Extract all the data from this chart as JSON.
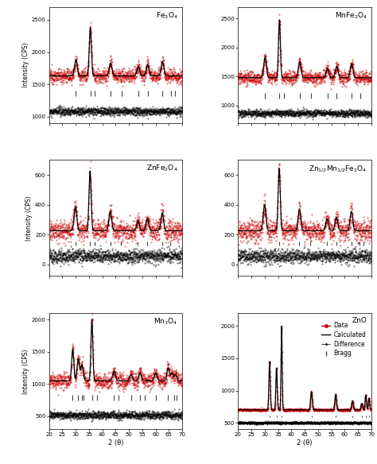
{
  "panels": [
    {
      "name": "Fe$_3$O$_4$",
      "ylim": [
        900,
        2700
      ],
      "yticks": [
        1000,
        1500,
        2000,
        2500
      ],
      "baseline_data": 1630,
      "peak_positions": [
        30.1,
        35.5,
        43.1,
        53.5,
        57.0,
        62.6
      ],
      "peak_heights": [
        250,
        750,
        200,
        150,
        180,
        220
      ],
      "peak_widths": [
        0.5,
        0.4,
        0.5,
        0.5,
        0.5,
        0.5
      ],
      "noise_std": 55,
      "diff_baseline": 1080,
      "diff_noise": 30,
      "bragg_positions": [
        30.1,
        35.5,
        37.1,
        43.1,
        47.2,
        53.5,
        57.0,
        62.6,
        65.8,
        67.2
      ]
    },
    {
      "name": "MnFe$_2$O$_4$",
      "ylim": [
        700,
        2700
      ],
      "yticks": [
        1000,
        1500,
        2000,
        2500
      ],
      "baseline_data": 1480,
      "peak_positions": [
        30.1,
        35.5,
        43.1,
        53.5,
        57.0,
        62.6
      ],
      "peak_heights": [
        350,
        1000,
        280,
        160,
        200,
        240
      ],
      "peak_widths": [
        0.5,
        0.35,
        0.5,
        0.5,
        0.5,
        0.5
      ],
      "noise_std": 55,
      "diff_baseline": 870,
      "diff_noise": 30,
      "bragg_positions": [
        30.1,
        35.5,
        37.1,
        43.1,
        47.2,
        53.5,
        57.0,
        62.6,
        65.8
      ]
    },
    {
      "name": "ZnFe$_2$O$_4$",
      "ylim": [
        -80,
        700
      ],
      "yticks": [
        0,
        200,
        400,
        600
      ],
      "baseline_data": 225,
      "peak_positions": [
        29.9,
        35.4,
        43.0,
        53.4,
        56.9,
        62.5
      ],
      "peak_heights": [
        160,
        400,
        130,
        70,
        80,
        120
      ],
      "peak_widths": [
        0.5,
        0.4,
        0.5,
        0.5,
        0.5,
        0.5
      ],
      "noise_std": 35,
      "diff_baseline": 55,
      "diff_noise": 22,
      "bragg_positions": [
        29.9,
        35.4,
        37.0,
        43.0,
        47.0,
        53.4,
        56.9,
        62.5,
        65.5
      ]
    },
    {
      "name": "Zn$_{1/2}$Mn$_{1/2}$Fe$_2$O$_4$",
      "ylim": [
        -80,
        700
      ],
      "yticks": [
        0,
        200,
        400,
        600
      ],
      "baseline_data": 225,
      "peak_positions": [
        29.9,
        35.4,
        43.0,
        53.4,
        56.9,
        62.5
      ],
      "peak_heights": [
        175,
        420,
        145,
        80,
        90,
        130
      ],
      "peak_widths": [
        0.5,
        0.4,
        0.5,
        0.5,
        0.5,
        0.5
      ],
      "noise_std": 35,
      "diff_baseline": 55,
      "diff_noise": 22,
      "bragg_positions": [
        35.4,
        43.0,
        47.0,
        53.4,
        56.9,
        62.5,
        65.5,
        67.0
      ]
    },
    {
      "name": "Mn$_3$O$_4$",
      "ylim": [
        300,
        2100
      ],
      "yticks": [
        500,
        1000,
        1500,
        2000
      ],
      "baseline_data": 1050,
      "peak_positions": [
        28.9,
        31.0,
        32.4,
        36.1,
        44.4,
        50.8,
        54.2,
        60.0,
        64.7,
        66.1,
        67.5
      ],
      "peak_heights": [
        500,
        350,
        250,
        950,
        150,
        100,
        130,
        120,
        200,
        120,
        100
      ],
      "peak_widths": [
        0.4,
        0.45,
        0.45,
        0.35,
        0.5,
        0.5,
        0.5,
        0.5,
        0.45,
        0.45,
        0.45
      ],
      "noise_std": 60,
      "diff_baseline": 520,
      "diff_noise": 30,
      "bragg_positions": [
        28.9,
        31.0,
        32.4,
        33.0,
        36.1,
        38.0,
        44.4,
        46.0,
        50.8,
        54.2,
        56.0,
        60.0,
        64.7,
        67.0,
        67.8
      ]
    },
    {
      "name": "ZnO",
      "ylim": [
        400,
        2200
      ],
      "yticks": [
        500,
        1000,
        1500,
        2000
      ],
      "baseline_data": 700,
      "peak_positions": [
        31.8,
        34.4,
        36.3,
        47.5,
        56.6,
        62.9,
        66.4,
        67.9,
        69.1
      ],
      "peak_heights": [
        750,
        650,
        1300,
        280,
        240,
        140,
        100,
        230,
        180
      ],
      "peak_widths": [
        0.25,
        0.25,
        0.2,
        0.3,
        0.3,
        0.3,
        0.3,
        0.25,
        0.25
      ],
      "noise_std": 8,
      "diff_baseline": 500,
      "diff_noise": 8,
      "bragg_positions": [
        31.8,
        34.4,
        36.3,
        47.5,
        56.6,
        62.9,
        66.4,
        67.9,
        69.1
      ]
    }
  ],
  "xlim": [
    20,
    70
  ],
  "xticks": [
    20,
    25,
    30,
    35,
    40,
    45,
    50,
    55,
    60,
    65,
    70
  ],
  "xlabel": "2 (θ)",
  "ylabel": "Intensity (CPS)",
  "data_color": "#cc0000",
  "calc_color": "#000000",
  "diff_color": "#000000",
  "bragg_color": "#444444",
  "background_color": "#ffffff"
}
